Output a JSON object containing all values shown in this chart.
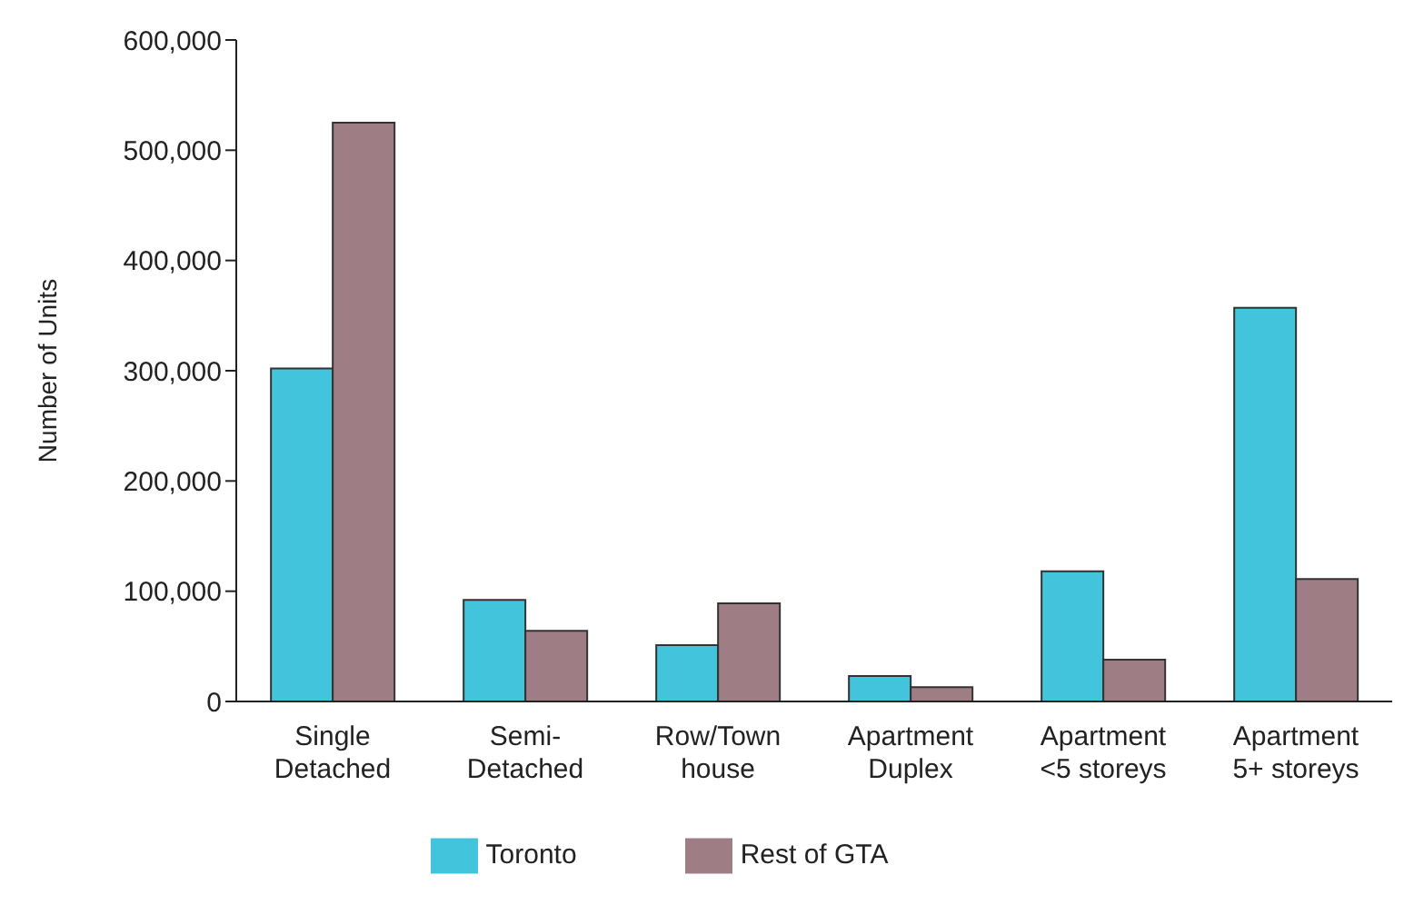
{
  "chart_data": {
    "type": "bar",
    "ylabel": "Number of Units",
    "categories": [
      "Single\nDetached",
      "Semi-\nDetached",
      "Row/Town\nhouse",
      "Apartment\nDuplex",
      "Apartment\n<5 storeys",
      "Apartment\n5+ storeys"
    ],
    "series": [
      {
        "name": "Toronto",
        "color": "#41c4dc",
        "values": [
          302000,
          92000,
          51000,
          23000,
          118000,
          357000
        ]
      },
      {
        "name": "Rest of GTA",
        "color": "#9e7d84",
        "values": [
          525000,
          64000,
          89000,
          13000,
          38000,
          111000
        ]
      }
    ],
    "ylim": [
      0,
      600000
    ],
    "yticks": [
      {
        "value": 0,
        "label": "0"
      },
      {
        "value": 100000,
        "label": "100,000"
      },
      {
        "value": 200000,
        "label": "200,000"
      },
      {
        "value": 300000,
        "label": "300,000"
      },
      {
        "value": 400000,
        "label": "400,000"
      },
      {
        "value": 500000,
        "label": "500,000"
      },
      {
        "value": 600000,
        "label": "600,000"
      }
    ],
    "grid": false,
    "legend": "bottom"
  }
}
